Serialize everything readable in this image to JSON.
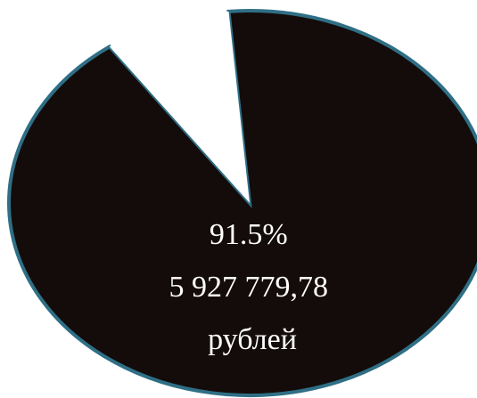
{
  "chart_data": {
    "type": "pie",
    "slices": [
      {
        "percent": 91.5,
        "label_lines": [
          "91.5%",
          "5 927 779,78",
          "рублей"
        ],
        "fill": "#140c0a",
        "stroke": "#2f6f86",
        "exploded": false
      },
      {
        "percent": 8.5,
        "label_lines": [],
        "fill": "#ffffff",
        "stroke": "#ffffff",
        "exploded": false
      }
    ],
    "title": "",
    "legend": "none"
  }
}
